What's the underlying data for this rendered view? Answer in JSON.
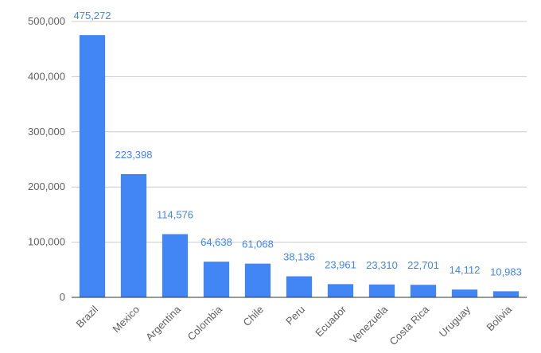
{
  "chart_data": {
    "type": "bar",
    "categories": [
      "Brazil",
      "Mexico",
      "Argentina",
      "Colombia",
      "Chile",
      "Peru",
      "Ecuador",
      "Venezuela",
      "Costa Rica",
      "Uruguay",
      "Bolivia"
    ],
    "values": [
      475272,
      223398,
      114576,
      64638,
      61068,
      38136,
      23961,
      23310,
      22701,
      14112,
      10983
    ],
    "data_labels": [
      "475,272",
      "223,398",
      "114,576",
      "64,638",
      "61,068",
      "38,136",
      "23,961",
      "23,310",
      "22,701",
      "14,112",
      "10,983"
    ],
    "y_ticks": [
      0,
      100000,
      200000,
      300000,
      400000,
      500000
    ],
    "y_tick_labels": [
      "0",
      "100,000",
      "200,000",
      "300,000",
      "400,000",
      "500,000"
    ],
    "ylim": [
      0,
      500000
    ],
    "title": "",
    "xlabel": "",
    "ylabel": "",
    "grid": true,
    "legend": "none",
    "colors": {
      "bar": "#4285f4",
      "data_label": "#4285f4",
      "grid": "#cccccc",
      "axis": "#333333",
      "text": "#5f5f5f"
    }
  }
}
